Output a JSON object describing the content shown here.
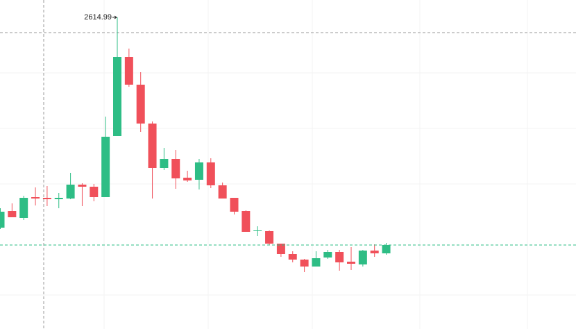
{
  "chart_data": {
    "type": "candlestick",
    "open": [
      2009,
      2057,
      2037,
      2097,
      2095,
      2091,
      2093,
      2133,
      2127,
      2097,
      2273,
      2501,
      2421,
      2309,
      2181,
      2207,
      2153,
      2147,
      2197,
      2131,
      2095,
      2057,
      1999,
      1999,
      1963,
      1933,
      1917,
      1897,
      1923,
      1939,
      1911,
      1903,
      1943,
      1935
    ],
    "high": [
      2065,
      2079,
      2101,
      2125,
      2129,
      2109,
      2167,
      2137,
      2135,
      2329,
      2614.99,
      2525,
      2457,
      2315,
      2239,
      2233,
      2173,
      2207,
      2209,
      2139,
      2095,
      2059,
      2013,
      2001,
      1963,
      1941,
      1919,
      1941,
      1945,
      1945,
      1953,
      1945,
      1961,
      1965
    ],
    "low": [
      2005,
      2039,
      2031,
      2073,
      2071,
      2065,
      2091,
      2071,
      2085,
      2097,
      2273,
      2415,
      2285,
      2093,
      2175,
      2121,
      2141,
      2119,
      2123,
      2093,
      2047,
      1997,
      1985,
      1959,
      1925,
      1909,
      1881,
      1897,
      1919,
      1885,
      1887,
      1897,
      1925,
      1931
    ],
    "close": [
      2055,
      2039,
      2095,
      2093,
      2091,
      2095,
      2133,
      2127,
      2097,
      2271,
      2501,
      2421,
      2309,
      2181,
      2207,
      2151,
      2145,
      2197,
      2131,
      2093,
      2055,
      1997,
      2001,
      1963,
      1933,
      1917,
      1897,
      1921,
      1939,
      1909,
      1905,
      1943,
      1935,
      1959
    ],
    "up_color": "#2ebd85",
    "down_color": "#f0505a",
    "ylim": [
      1717,
      2665
    ]
  }
}
